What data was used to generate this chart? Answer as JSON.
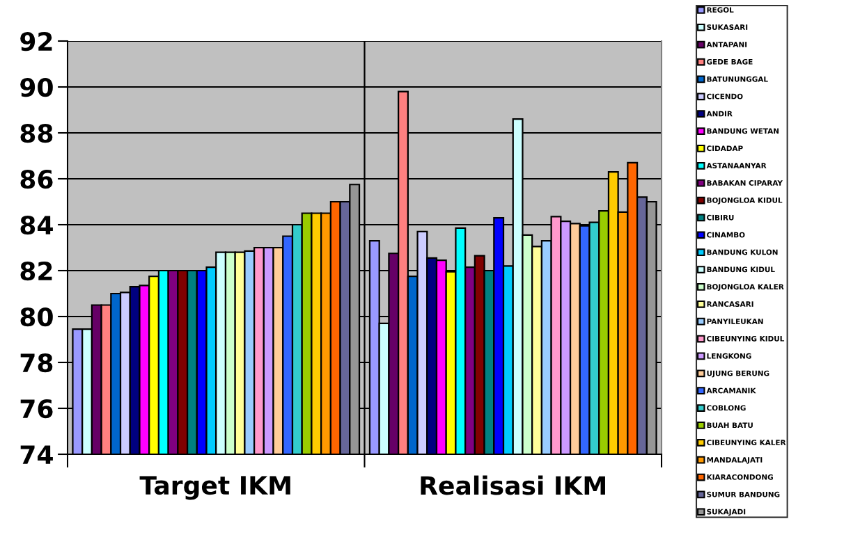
{
  "chart_data": {
    "type": "bar",
    "categories": [
      "Target IKM",
      "Realisasi IKM"
    ],
    "ylim": [
      74,
      92
    ],
    "yticks": [
      74,
      76,
      78,
      80,
      82,
      84,
      86,
      88,
      90,
      92
    ],
    "grid": true,
    "legend": "right",
    "series": [
      {
        "name": "REGOL",
        "color": "#9999ff",
        "values": [
          79.45,
          83.3
        ]
      },
      {
        "name": "SUKASARI",
        "color": "#ccffff",
        "values": [
          79.45,
          79.7
        ]
      },
      {
        "name": "ANTAPANI",
        "color": "#660066",
        "values": [
          80.5,
          82.75
        ]
      },
      {
        "name": "GEDE BAGE",
        "color": "#ff8080",
        "values": [
          80.5,
          89.8
        ]
      },
      {
        "name": "BATUNUNGGAL",
        "color": "#0066cc",
        "values": [
          81.0,
          81.75
        ]
      },
      {
        "name": "CICENDO",
        "color": "#ccccff",
        "values": [
          81.05,
          83.7
        ]
      },
      {
        "name": "ANDIR",
        "color": "#000080",
        "values": [
          81.3,
          82.55
        ]
      },
      {
        "name": "BANDUNG WETAN",
        "color": "#ff00ff",
        "values": [
          81.35,
          82.45
        ]
      },
      {
        "name": "CIDADAP",
        "color": "#ffff00",
        "values": [
          81.75,
          81.95
        ]
      },
      {
        "name": "ASTANAANYAR",
        "color": "#00ffff",
        "values": [
          82.0,
          83.85
        ]
      },
      {
        "name": "BABAKAN CIPARAY",
        "color": "#800080",
        "values": [
          82.0,
          82.15
        ]
      },
      {
        "name": "BOJONGLOA KIDUL",
        "color": "#800000",
        "values": [
          82.0,
          82.65
        ]
      },
      {
        "name": "CIBIRU",
        "color": "#008080",
        "values": [
          82.0,
          82.0
        ]
      },
      {
        "name": "CINAMBO",
        "color": "#0000ff",
        "values": [
          82.0,
          84.3
        ]
      },
      {
        "name": "BANDUNG KULON",
        "color": "#00ccff",
        "values": [
          82.15,
          82.2
        ]
      },
      {
        "name": "BANDUNG KIDUL",
        "color": "#ccffff",
        "values": [
          82.8,
          88.6
        ]
      },
      {
        "name": "BOJONGLOA KALER",
        "color": "#ccffcc",
        "values": [
          82.8,
          83.55
        ]
      },
      {
        "name": "RANCASARI",
        "color": "#ffff99",
        "values": [
          82.8,
          83.05
        ]
      },
      {
        "name": "PANYILEUKAN",
        "color": "#99ccff",
        "values": [
          82.85,
          83.3
        ]
      },
      {
        "name": "CIBEUNYING KIDUL",
        "color": "#ff99cc",
        "values": [
          83.0,
          84.35
        ]
      },
      {
        "name": "LENGKONG",
        "color": "#cc99ff",
        "values": [
          83.0,
          84.15
        ]
      },
      {
        "name": "UJUNG BERUNG",
        "color": "#ffcc99",
        "values": [
          83.0,
          84.05
        ]
      },
      {
        "name": "ARCAMANIK",
        "color": "#3366ff",
        "values": [
          83.5,
          83.95
        ]
      },
      {
        "name": "COBLONG",
        "color": "#33cccc",
        "values": [
          84.0,
          84.1
        ]
      },
      {
        "name": "BUAH BATU",
        "color": "#99cc00",
        "values": [
          84.5,
          84.6
        ]
      },
      {
        "name": "CIBEUNYING KALER",
        "color": "#ffcc00",
        "values": [
          84.5,
          86.3
        ]
      },
      {
        "name": "MANDALAJATI",
        "color": "#ff9900",
        "values": [
          84.5,
          84.55
        ]
      },
      {
        "name": "KIARACONDONG",
        "color": "#ff6600",
        "values": [
          85.0,
          86.7
        ]
      },
      {
        "name": "SUMUR BANDUNG",
        "color": "#666699",
        "values": [
          85.0,
          85.2
        ]
      },
      {
        "name": "SUKAJADI",
        "color": "#969696",
        "values": [
          85.75,
          85.0
        ]
      }
    ]
  }
}
